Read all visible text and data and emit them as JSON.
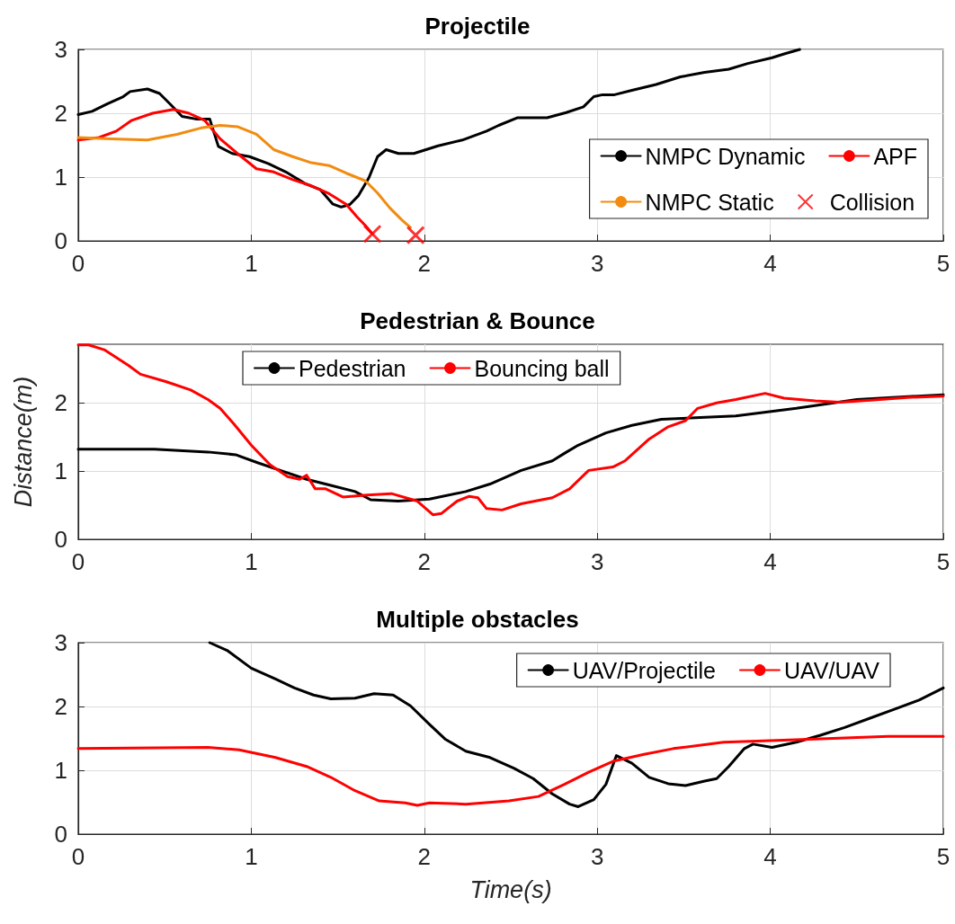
{
  "chart_data": [
    {
      "type": "line",
      "title": "Projectile",
      "xlim": [
        0,
        5
      ],
      "xticks": [
        0,
        1,
        2,
        3,
        4,
        5
      ],
      "ylim": [
        0,
        3
      ],
      "yticks": [
        0,
        1,
        2,
        3
      ],
      "grid": true,
      "legend": "bottom right",
      "series": [
        {
          "name": "NMPC Dynamic",
          "color": "#000000",
          "marker": "none",
          "x": [
            0,
            0.08,
            0.17,
            0.26,
            0.3,
            0.4,
            0.47,
            0.54,
            0.6,
            0.68,
            0.76,
            0.81,
            0.89,
            0.99,
            1.1,
            1.2,
            1.31,
            1.4,
            1.47,
            1.52,
            1.57,
            1.62,
            1.68,
            1.73,
            1.78,
            1.85,
            1.94,
            2.08,
            2.22,
            2.36,
            2.43,
            2.54,
            2.61,
            2.71,
            2.82,
            2.92,
            2.98,
            3.03,
            3.1,
            3.2,
            3.34,
            3.48,
            3.62,
            3.76,
            3.87,
            4.01,
            4.08,
            4.17
          ],
          "values": [
            1.98,
            2.03,
            2.15,
            2.26,
            2.34,
            2.38,
            2.31,
            2.12,
            1.95,
            1.91,
            1.91,
            1.48,
            1.37,
            1.32,
            1.21,
            1.08,
            0.9,
            0.8,
            0.58,
            0.53,
            0.57,
            0.71,
            0.99,
            1.32,
            1.43,
            1.37,
            1.37,
            1.49,
            1.58,
            1.72,
            1.81,
            1.93,
            1.93,
            1.93,
            2.01,
            2.1,
            2.26,
            2.29,
            2.29,
            2.36,
            2.45,
            2.57,
            2.64,
            2.69,
            2.78,
            2.87,
            2.93,
            3.0
          ]
        },
        {
          "name": "APF",
          "color": "#ff0000",
          "marker": "none",
          "x": [
            0,
            0.12,
            0.22,
            0.31,
            0.43,
            0.55,
            0.64,
            0.73,
            0.82,
            0.92,
            1.03,
            1.13,
            1.24,
            1.34,
            1.45,
            1.55,
            1.61,
            1.66,
            1.7
          ],
          "values": [
            1.58,
            1.62,
            1.72,
            1.89,
            2.0,
            2.06,
            2.0,
            1.89,
            1.6,
            1.37,
            1.13,
            1.08,
            0.96,
            0.87,
            0.74,
            0.57,
            0.38,
            0.24,
            0.11
          ]
        },
        {
          "name": "NMPC Static",
          "color": "#f28b10",
          "marker": "none",
          "x": [
            0,
            0.19,
            0.4,
            0.57,
            0.71,
            0.82,
            0.92,
            1.03,
            1.13,
            1.24,
            1.34,
            1.45,
            1.55,
            1.66,
            1.73,
            1.8,
            1.87,
            1.92
          ],
          "values": [
            1.62,
            1.6,
            1.58,
            1.67,
            1.77,
            1.81,
            1.79,
            1.67,
            1.43,
            1.32,
            1.23,
            1.18,
            1.06,
            0.94,
            0.75,
            0.52,
            0.33,
            0.21
          ]
        },
        {
          "name": "Collision",
          "type": "scatter",
          "color": "#ff0000",
          "marker": "cross",
          "x": [
            1.7,
            1.95
          ],
          "values": [
            0.11,
            0.09
          ]
        }
      ]
    },
    {
      "type": "line",
      "title": "Pedestrian & Bounce",
      "ylabel": "Distance(m)",
      "xlim": [
        0,
        5
      ],
      "xticks": [
        0,
        1,
        2,
        3,
        4,
        5
      ],
      "ylim": [
        0,
        2.86
      ],
      "yticks": [
        0,
        1,
        2
      ],
      "grid": true,
      "legend": "top",
      "series": [
        {
          "name": "Pedestrian",
          "color": "#000000",
          "marker": "none",
          "x": [
            0,
            0.44,
            0.75,
            0.91,
            1.04,
            1.18,
            1.32,
            1.46,
            1.6,
            1.69,
            1.85,
            2.03,
            2.24,
            2.38,
            2.56,
            2.74,
            2.81,
            2.89,
            3.05,
            3.2,
            3.37,
            3.8,
            4.15,
            4.5,
            5.0
          ],
          "values": [
            1.32,
            1.32,
            1.28,
            1.24,
            1.12,
            1.0,
            0.88,
            0.79,
            0.7,
            0.58,
            0.56,
            0.59,
            0.7,
            0.81,
            1.01,
            1.15,
            1.26,
            1.38,
            1.56,
            1.67,
            1.76,
            1.81,
            1.92,
            2.05,
            2.12
          ]
        },
        {
          "name": "Bouncing ball",
          "color": "#ff0000",
          "marker": "none",
          "x": [
            0,
            0.06,
            0.15,
            0.29,
            0.36,
            0.51,
            0.65,
            0.75,
            0.82,
            0.9,
            1.0,
            1.11,
            1.21,
            1.28,
            1.32,
            1.37,
            1.43,
            1.53,
            1.67,
            1.81,
            1.96,
            2.05,
            2.1,
            2.19,
            2.26,
            2.31,
            2.36,
            2.45,
            2.56,
            2.74,
            2.84,
            2.95,
            3.09,
            3.16,
            3.3,
            3.41,
            3.51,
            3.58,
            3.69,
            3.8,
            3.97,
            4.08,
            4.26,
            4.4,
            4.58,
            4.79,
            5.0
          ],
          "values": [
            2.85,
            2.85,
            2.78,
            2.55,
            2.42,
            2.31,
            2.19,
            2.05,
            1.92,
            1.69,
            1.38,
            1.09,
            0.92,
            0.88,
            0.94,
            0.74,
            0.74,
            0.62,
            0.65,
            0.67,
            0.56,
            0.36,
            0.38,
            0.56,
            0.63,
            0.61,
            0.45,
            0.43,
            0.52,
            0.61,
            0.74,
            1.01,
            1.06,
            1.15,
            1.47,
            1.65,
            1.74,
            1.92,
            2.0,
            2.05,
            2.14,
            2.07,
            2.03,
            2.01,
            2.04,
            2.08,
            2.1
          ]
        }
      ]
    },
    {
      "type": "line",
      "title": "Multiple obstacles",
      "xlabel": "Time(s)",
      "xlim": [
        0,
        5
      ],
      "xticks": [
        0,
        1,
        2,
        3,
        4,
        5
      ],
      "ylim": [
        0,
        3
      ],
      "yticks": [
        0,
        1,
        2,
        3
      ],
      "grid": true,
      "legend": "top right",
      "series": [
        {
          "name": "UAV/Projectile",
          "color": "#000000",
          "marker": "none",
          "x": [
            0.76,
            0.86,
            1.0,
            1.14,
            1.25,
            1.36,
            1.46,
            1.6,
            1.71,
            1.82,
            1.92,
            2.03,
            2.12,
            2.24,
            2.38,
            2.52,
            2.63,
            2.74,
            2.84,
            2.89,
            2.98,
            3.05,
            3.11,
            3.2,
            3.3,
            3.41,
            3.51,
            3.62,
            3.69,
            3.76,
            3.85,
            3.9,
            4.01,
            4.15,
            4.29,
            4.43,
            4.58,
            4.72,
            4.86,
            5.0
          ],
          "values": [
            3.0,
            2.88,
            2.6,
            2.43,
            2.29,
            2.18,
            2.12,
            2.13,
            2.2,
            2.18,
            2.01,
            1.72,
            1.49,
            1.3,
            1.2,
            1.03,
            0.87,
            0.63,
            0.47,
            0.43,
            0.54,
            0.78,
            1.23,
            1.11,
            0.89,
            0.79,
            0.76,
            0.83,
            0.87,
            1.06,
            1.34,
            1.41,
            1.36,
            1.44,
            1.55,
            1.67,
            1.82,
            1.96,
            2.1,
            2.29
          ]
        },
        {
          "name": "UAV/UAV",
          "color": "#ff0000",
          "marker": "none",
          "x": [
            0,
            0.75,
            0.93,
            1.14,
            1.32,
            1.46,
            1.6,
            1.74,
            1.89,
            1.96,
            2.03,
            2.24,
            2.49,
            2.66,
            2.81,
            2.95,
            3.09,
            3.27,
            3.44,
            3.73,
            4.15,
            4.68,
            5.0
          ],
          "values": [
            1.34,
            1.36,
            1.32,
            1.2,
            1.06,
            0.89,
            0.68,
            0.52,
            0.49,
            0.45,
            0.49,
            0.47,
            0.52,
            0.59,
            0.78,
            0.97,
            1.14,
            1.25,
            1.34,
            1.44,
            1.48,
            1.53,
            1.53
          ]
        }
      ]
    }
  ]
}
